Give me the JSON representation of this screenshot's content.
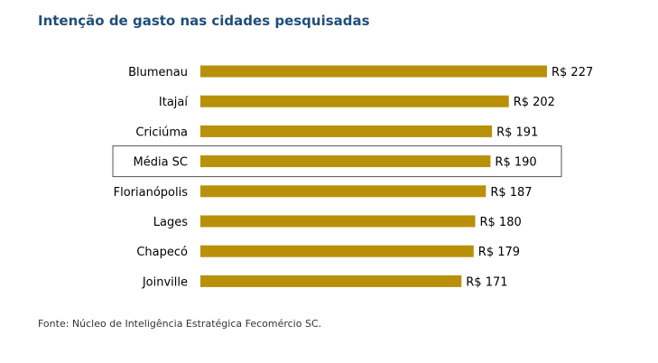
{
  "title": "Intenção de gasto nas cidades pesquisadas",
  "source": "Fonte: Núcleo de Inteligência Estratégica Fecomércio SC.",
  "colors": {
    "bar": "#b8900a",
    "highlight_border": "#555555"
  },
  "chart_data": {
    "type": "bar",
    "orientation": "horizontal",
    "categories": [
      "Blumenau",
      "Itajaí",
      "Criciúma",
      "Média SC",
      "Florianópolis",
      "Lages",
      "Chapecó",
      "Joinville"
    ],
    "values": [
      227,
      202,
      191,
      190,
      187,
      180,
      179,
      171
    ],
    "value_labels": [
      "R$ 227",
      "R$ 202",
      "R$ 191",
      "R$ 190",
      "R$ 187",
      "R$ 180",
      "R$ 179",
      "R$ 171"
    ],
    "highlighted_category": "Média SC",
    "grid": false,
    "xlim": [
      0,
      227
    ]
  }
}
